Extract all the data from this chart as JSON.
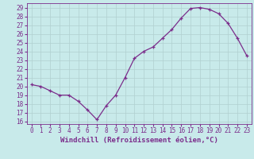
{
  "x": [
    0,
    1,
    2,
    3,
    4,
    5,
    6,
    7,
    8,
    9,
    10,
    11,
    12,
    13,
    14,
    15,
    16,
    17,
    18,
    19,
    20,
    21,
    22,
    23
  ],
  "y": [
    20.2,
    20.0,
    19.5,
    19.0,
    19.0,
    18.3,
    17.3,
    16.2,
    17.8,
    19.0,
    21.0,
    23.2,
    24.0,
    24.5,
    25.5,
    26.5,
    27.8,
    28.9,
    29.0,
    28.8,
    28.3,
    27.2,
    25.5,
    23.5
  ],
  "line_color": "#7b2d8b",
  "marker": "+",
  "bg_color": "#c8eaea",
  "grid_color": "#b0d0d0",
  "xlabel": "Windchill (Refroidissement éolien,°C)",
  "ylabel_ticks": [
    16,
    17,
    18,
    19,
    20,
    21,
    22,
    23,
    24,
    25,
    26,
    27,
    28,
    29
  ],
  "xlim": [
    -0.5,
    23.5
  ],
  "ylim": [
    15.7,
    29.5
  ],
  "xticks": [
    0,
    1,
    2,
    3,
    4,
    5,
    6,
    7,
    8,
    9,
    10,
    11,
    12,
    13,
    14,
    15,
    16,
    17,
    18,
    19,
    20,
    21,
    22,
    23
  ],
  "axis_color": "#7b2d8b",
  "font_size_tick": 5.5,
  "font_size_xlabel": 6.5,
  "linewidth": 0.9,
  "markersize": 3.5,
  "markeredgewidth": 0.9
}
